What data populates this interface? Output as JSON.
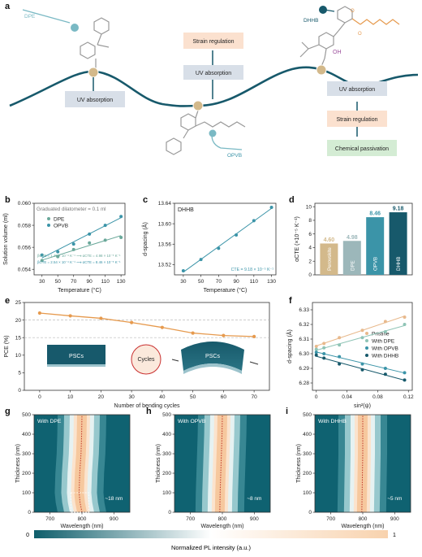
{
  "panels": {
    "a": "a",
    "b": "b",
    "c": "c",
    "d": "d",
    "e": "e",
    "f": "f",
    "g": "g",
    "h": "h",
    "i": "i"
  },
  "colors": {
    "teal_dark": "#17596b",
    "teal": "#3b94a8",
    "teal_light": "#7ab9c4",
    "grey_teal": "#9cb7ba",
    "orange": "#e69a4e",
    "peach": "#f9d6b6",
    "tan": "#d3b98b",
    "sage": "#a8c9a8"
  },
  "schematic": {
    "molecules": [
      "DPE",
      "OPVB",
      "DHHB"
    ],
    "dhhb_oh": "OH",
    "boxes": {
      "uv1": "UV absorption",
      "uv2": "UV absorption",
      "uv3": "UV absorption",
      "strain1": "Strain regulation",
      "strain2": "Strain regulation",
      "chem": "Chemical passivation"
    }
  },
  "chart_data": [
    {
      "panel": "b",
      "type": "scatter",
      "xlabel": "Temperature (°C)",
      "ylabel": "Solution volume (ml)",
      "xlim": [
        20,
        135
      ],
      "ylim": [
        0.0535,
        0.06
      ],
      "xticks": [
        30,
        50,
        70,
        90,
        110,
        130
      ],
      "yticks": [
        0.054,
        0.056,
        0.058,
        0.06
      ],
      "ytick_labels": [
        "0.054",
        "0.056",
        "0.058",
        "0.060"
      ],
      "annotation": "Graduated dilatometer = 0.1 ml",
      "series": [
        {
          "name": "DPE",
          "color": "#6aa89a",
          "x": [
            30,
            50,
            70,
            90,
            110,
            130
          ],
          "y": [
            0.0548,
            0.05515,
            0.0558,
            0.0564,
            0.05665,
            0.0569
          ]
        },
        {
          "name": "OPVB",
          "color": "#3b94a8",
          "x": [
            30,
            50,
            70,
            90,
            110,
            130
          ],
          "y": [
            0.0553,
            0.0556,
            0.0563,
            0.0572,
            0.058,
            0.0588
          ]
        }
      ],
      "fit_labels": [
        {
          "text": "βCTE = 1.49 × 10⁻⁴ K⁻¹ ⟶ αCTE = 4.98 × 10⁻⁵ K⁻¹",
          "color": "#6aa89a"
        },
        {
          "text": "βCTE = 2.54 × 10⁻⁴ K⁻¹ ⟶ αCTE = 8.46 × 10⁻⁵ K⁻¹",
          "color": "#3b94a8"
        }
      ]
    },
    {
      "panel": "c",
      "type": "scatter",
      "title": "DHHB",
      "xlabel": "Temperature (°C)",
      "ylabel": "d-spacing (Å)",
      "xlim": [
        20,
        135
      ],
      "ylim": [
        13.5,
        13.64
      ],
      "xticks": [
        30,
        50,
        70,
        90,
        110,
        130
      ],
      "yticks": [
        13.52,
        13.56,
        13.6,
        13.64
      ],
      "ytick_labels": [
        "13.52",
        "13.56",
        "13.60",
        "13.64"
      ],
      "annotation": "CTE = 9.18 × 10⁻⁵ K⁻¹",
      "series": [
        {
          "name": "DHHB",
          "color": "#3b94a8",
          "x": [
            30,
            50,
            70,
            90,
            110,
            130
          ],
          "y": [
            13.508,
            13.53,
            13.552,
            13.578,
            13.606,
            13.632
          ]
        }
      ]
    },
    {
      "panel": "d",
      "type": "bar",
      "ylabel": "αCTE (×10⁻⁵ K⁻¹)",
      "ylim": [
        0,
        10.5
      ],
      "yticks": [
        0,
        2,
        4,
        6,
        8,
        10
      ],
      "categories": [
        "Perovskite",
        "DPE",
        "OPVB",
        "DHHB"
      ],
      "values": [
        4.6,
        4.98,
        8.46,
        9.18
      ],
      "value_labels": [
        "4.60",
        "4.98",
        "8.46",
        "9.18"
      ],
      "colors": [
        "#d3b98b",
        "#9cb7ba",
        "#3b94a8",
        "#17596b"
      ]
    },
    {
      "panel": "e",
      "type": "line",
      "xlabel": "Number of bending cycles",
      "ylabel": "PCE (%)",
      "xlim": [
        -5,
        75
      ],
      "ylim": [
        0,
        25
      ],
      "xticks": [
        0,
        10,
        20,
        30,
        40,
        50,
        60,
        70
      ],
      "yticks": [
        0,
        5,
        10,
        15,
        20,
        25
      ],
      "series": [
        {
          "name": "PCE",
          "color": "#e69a4e",
          "x": [
            0,
            10,
            20,
            30,
            40,
            50,
            60,
            70
          ],
          "y": [
            22.0,
            21.2,
            20.5,
            19.3,
            17.9,
            16.3,
            15.6,
            15.3
          ]
        }
      ],
      "dashed_lines": [
        20,
        15
      ],
      "inset": {
        "flat": "PSCs",
        "cycles": "Cycles",
        "bent": "PSCs"
      }
    },
    {
      "panel": "f",
      "type": "scatter",
      "xlabel": "sin²(ψ)",
      "ylabel": "d-spacing (Å)",
      "xlim": [
        -0.005,
        0.125
      ],
      "ylim": [
        6.275,
        6.335
      ],
      "xticks": [
        0,
        0.04,
        0.08,
        0.12
      ],
      "yticks": [
        6.28,
        6.29,
        6.3,
        6.31,
        6.32,
        6.33
      ],
      "xtick_labels": [
        "0",
        "0.04",
        "0.08",
        "0.12"
      ],
      "ytick_labels": [
        "6.28",
        "6.29",
        "6.30",
        "6.31",
        "6.32",
        "6.33"
      ],
      "series": [
        {
          "name": "Pristine",
          "color": "#e8b98c",
          "x": [
            0,
            0.01,
            0.03,
            0.06,
            0.09,
            0.115
          ],
          "y": [
            6.305,
            6.307,
            6.311,
            6.316,
            6.322,
            6.325
          ]
        },
        {
          "name": "With DPE",
          "color": "#8fc4b6",
          "x": [
            0,
            0.01,
            0.03,
            0.06,
            0.09,
            0.115
          ],
          "y": [
            6.303,
            6.304,
            6.306,
            6.311,
            6.315,
            6.32
          ]
        },
        {
          "name": "With OPVB",
          "color": "#3b94a8",
          "x": [
            0,
            0.01,
            0.03,
            0.06,
            0.09,
            0.115
          ],
          "y": [
            6.301,
            6.3,
            6.298,
            6.293,
            6.29,
            6.287
          ]
        },
        {
          "name": "With DHHB",
          "color": "#17596b",
          "x": [
            0,
            0.01,
            0.03,
            0.06,
            0.09,
            0.115
          ],
          "y": [
            6.299,
            6.297,
            6.293,
            6.289,
            6.286,
            6.282
          ]
        }
      ]
    },
    {
      "panel": "g",
      "type": "heatmap",
      "title": "With DPE",
      "xlabel": "Wavelength (nm)",
      "ylabel": "Thickness (nm)",
      "xlim": [
        650,
        950
      ],
      "ylim": [
        0,
        500
      ],
      "xticks": [
        700,
        800,
        900
      ],
      "yticks": [
        0,
        100,
        200,
        300,
        400,
        500
      ],
      "peak_center": [
        {
          "t": 0,
          "nm": 800
        },
        {
          "t": 50,
          "nm": 794
        },
        {
          "t": 100,
          "nm": 791
        },
        {
          "t": 200,
          "nm": 793
        },
        {
          "t": 300,
          "nm": 797
        },
        {
          "t": 400,
          "nm": 799
        },
        {
          "t": 500,
          "nm": 800
        }
      ],
      "shift_label": "~18 nm"
    },
    {
      "panel": "h",
      "type": "heatmap",
      "title": "With OPVB",
      "xlabel": "Wavelength (nm)",
      "ylabel": "Thickness (nm)",
      "xlim": [
        650,
        950
      ],
      "ylim": [
        0,
        500
      ],
      "xticks": [
        700,
        800,
        900
      ],
      "yticks": [
        0,
        100,
        200,
        300,
        400,
        500
      ],
      "peak_center": [
        {
          "t": 0,
          "nm": 792
        },
        {
          "t": 100,
          "nm": 793
        },
        {
          "t": 200,
          "nm": 795
        },
        {
          "t": 300,
          "nm": 797
        },
        {
          "t": 400,
          "nm": 799
        },
        {
          "t": 500,
          "nm": 800
        }
      ],
      "shift_label": "~8 nm"
    },
    {
      "panel": "i",
      "type": "heatmap",
      "title": "With DHHB",
      "xlabel": "Wavelength (nm)",
      "ylabel": "Thickness (nm)",
      "xlim": [
        650,
        950
      ],
      "ylim": [
        0,
        500
      ],
      "xticks": [
        700,
        800,
        900
      ],
      "yticks": [
        0,
        100,
        200,
        300,
        400,
        500
      ],
      "peak_center": [
        {
          "t": 0,
          "nm": 797
        },
        {
          "t": 100,
          "nm": 798
        },
        {
          "t": 200,
          "nm": 799
        },
        {
          "t": 300,
          "nm": 800
        },
        {
          "t": 400,
          "nm": 800
        },
        {
          "t": 500,
          "nm": 800
        }
      ],
      "shift_label": "~5 nm"
    }
  ],
  "colorbar": {
    "label": "Normalized PL intensity (a.u.)",
    "min": "0",
    "max": "1",
    "colors": [
      "#0e5e6b",
      "#ffffff",
      "#f8d2ad"
    ]
  }
}
